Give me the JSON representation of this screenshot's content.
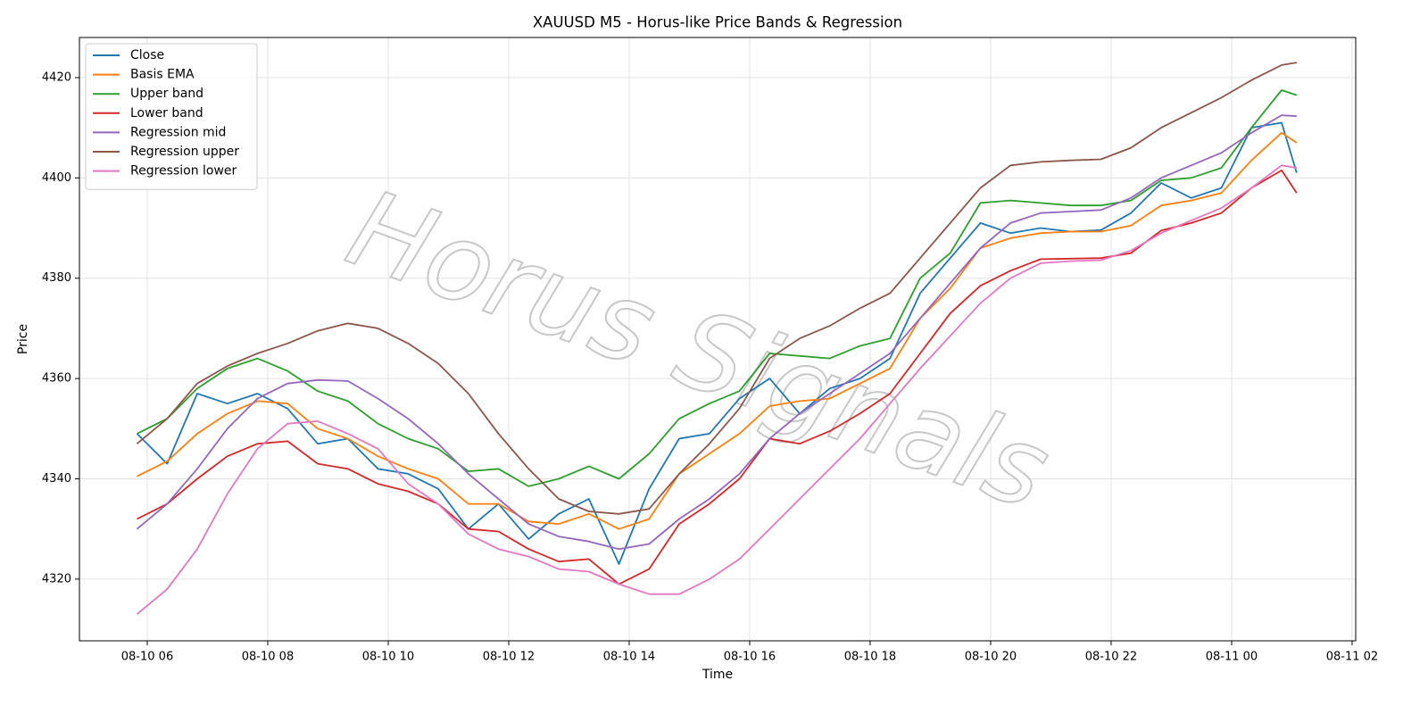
{
  "chart_data": {
    "type": "line",
    "title": "XAUUSD M5 - Horus-like Price Bands & Regression",
    "x_label": "Time",
    "y_label": "Price",
    "watermark": "Horus Signals",
    "x": [
      5.83,
      6.33,
      6.83,
      7.33,
      7.83,
      8.33,
      8.83,
      9.33,
      9.83,
      10.33,
      10.83,
      11.33,
      11.83,
      12.33,
      12.83,
      13.33,
      13.83,
      14.33,
      14.83,
      15.33,
      15.83,
      16.33,
      16.83,
      17.33,
      17.83,
      18.33,
      18.83,
      19.33,
      19.83,
      20.33,
      20.83,
      21.33,
      21.83,
      22.33,
      22.83,
      23.33,
      23.83,
      24.33,
      24.83,
      25.08
    ],
    "series": [
      {
        "name": "Close",
        "color": "#1f77b4",
        "values": [
          4349,
          4343,
          4357,
          4355,
          4357,
          4354,
          4347,
          4348,
          4342,
          4341,
          4338,
          4330,
          4335,
          4328,
          4333,
          4336,
          4323,
          4338,
          4348,
          4349,
          4356,
          4360,
          4353,
          4358,
          4360,
          4364,
          4377,
          4384,
          4391,
          4389,
          4390,
          4389.3,
          4389.6,
          4393,
          4399,
          4396,
          4398,
          4410,
          4411,
          4401
        ]
      },
      {
        "name": "Basis EMA",
        "color": "#ff7f0e",
        "values": [
          4340.5,
          4343.5,
          4349,
          4353,
          4355.5,
          4355,
          4350,
          4348,
          4344.5,
          4342,
          4340,
          4335,
          4335,
          4331.5,
          4331,
          4333,
          4330,
          4332,
          4341,
          4345,
          4349,
          4354.5,
          4355.5,
          4356,
          4359,
          4362,
          4372,
          4378,
          4386,
          4388,
          4389,
          4389.3,
          4389.3,
          4390.5,
          4394.5,
          4395.5,
          4397,
          4403.5,
          4409,
          4407
        ]
      },
      {
        "name": "Upper band",
        "color": "#2ca02c",
        "values": [
          4349,
          4352,
          4358,
          4362,
          4364,
          4361.5,
          4357.5,
          4355.5,
          4351,
          4348,
          4346,
          4341.5,
          4342,
          4338.5,
          4340,
          4342.5,
          4340,
          4345,
          4352,
          4355,
          4357.5,
          4365,
          4364.5,
          4364,
          4366.5,
          4368,
          4380,
          4385,
          4395,
          4395.5,
          4395,
          4394.5,
          4394.5,
          4395.5,
          4399.5,
          4400,
          4402,
          4410,
          4417.5,
          4416.5
        ]
      },
      {
        "name": "Lower band",
        "color": "#d62728",
        "values": [
          4332,
          4335,
          4340,
          4344.5,
          4347,
          4347.5,
          4343,
          4342,
          4339,
          4337.5,
          4335,
          4330,
          4329.5,
          4326,
          4323.5,
          4324,
          4319,
          4322,
          4331,
          4335,
          4340,
          4348,
          4347,
          4349.5,
          4353,
          4357,
          4365,
          4373,
          4378.5,
          4381.5,
          4383.8,
          4383.9,
          4384,
          4385,
          4389.5,
          4391,
          4393,
          4398,
          4401.5,
          4397
        ]
      },
      {
        "name": "Regression mid",
        "color": "#9467bd",
        "values": [
          4330,
          4335,
          4342,
          4350,
          4356,
          4359,
          4359.7,
          4359.5,
          4356,
          4352,
          4347,
          4341,
          4336,
          4331,
          4328.5,
          4327.5,
          4326,
          4327,
          4332,
          4336,
          4341,
          4348,
          4353,
          4357,
          4361,
          4365,
          4372,
          4379,
          4386,
          4391,
          4393,
          4393.3,
          4393.6,
          4396,
          4400,
          4402.5,
          4405,
          4409,
          4412.5,
          4412.3
        ]
      },
      {
        "name": "Regression upper",
        "color": "#8c564b",
        "values": [
          4347,
          4352,
          4359,
          4362.5,
          4365,
          4367,
          4369.5,
          4371,
          4370,
          4367,
          4363,
          4357,
          4349,
          4342,
          4336,
          4333.5,
          4333,
          4334,
          4341,
          4347,
          4354,
          4364,
          4368,
          4370.5,
          4374,
          4377,
          4384,
          4391,
          4398,
          4402.5,
          4403.2,
          4403.5,
          4403.7,
          4406,
          4410,
          4413,
          4416,
          4419.5,
          4422.5,
          4423
        ]
      },
      {
        "name": "Regression lower",
        "color": "#e377c2",
        "values": [
          4313,
          4318,
          4326,
          4337,
          4346,
          4351,
          4351.5,
          4349,
          4346,
          4339,
          4335,
          4329,
          4326,
          4324.5,
          4322,
          4321.5,
          4319,
          4317,
          4317,
          4320,
          4324,
          4330,
          4336,
          4342,
          4348,
          4355,
          4362,
          4368.5,
          4375,
          4380,
          4383,
          4383.4,
          4383.6,
          4385.5,
          4389,
          4391.5,
          4394,
          4398,
          4402.5,
          4402
        ]
      }
    ],
    "xlim": [
      4.874,
      26.06
    ],
    "ylim": [
      4307.7,
      4428
    ],
    "xticks": [
      {
        "value": 6,
        "label": "08-10 06"
      },
      {
        "value": 8,
        "label": "08-10 08"
      },
      {
        "value": 10,
        "label": "08-10 10"
      },
      {
        "value": 12,
        "label": "08-10 12"
      },
      {
        "value": 14,
        "label": "08-10 14"
      },
      {
        "value": 16,
        "label": "08-10 16"
      },
      {
        "value": 18,
        "label": "08-10 18"
      },
      {
        "value": 20,
        "label": "08-10 20"
      },
      {
        "value": 22,
        "label": "08-10 22"
      },
      {
        "value": 24,
        "label": "08-11 00"
      },
      {
        "value": 26,
        "label": "08-11 02"
      }
    ],
    "yticks": [
      4320,
      4340,
      4360,
      4380,
      4400,
      4420
    ],
    "grid": true,
    "legend": "upper left"
  }
}
